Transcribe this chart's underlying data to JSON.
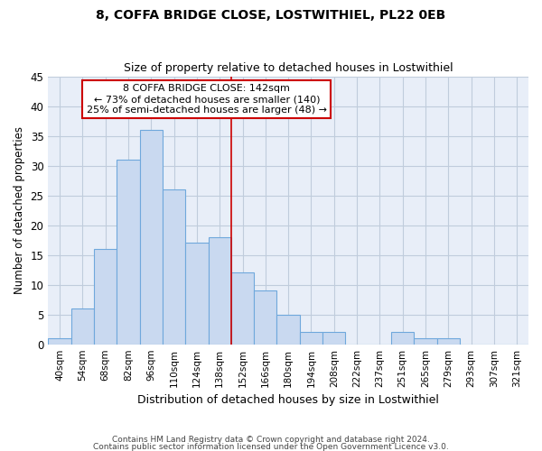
{
  "title": "8, COFFA BRIDGE CLOSE, LOSTWITHIEL, PL22 0EB",
  "subtitle": "Size of property relative to detached houses in Lostwithiel",
  "xlabel": "Distribution of detached houses by size in Lostwithiel",
  "ylabel": "Number of detached properties",
  "bar_labels": [
    "40sqm",
    "54sqm",
    "68sqm",
    "82sqm",
    "96sqm",
    "110sqm",
    "124sqm",
    "138sqm",
    "152sqm",
    "166sqm",
    "180sqm",
    "194sqm",
    "208sqm",
    "222sqm",
    "237sqm",
    "251sqm",
    "265sqm",
    "279sqm",
    "293sqm",
    "307sqm",
    "321sqm"
  ],
  "bar_values": [
    1,
    6,
    16,
    31,
    36,
    26,
    17,
    18,
    12,
    9,
    5,
    2,
    2,
    0,
    0,
    2,
    1,
    1,
    0,
    0,
    0
  ],
  "bar_color": "#c9d9f0",
  "bar_edge_color": "#6fa8dc",
  "annotation_title": "8 COFFA BRIDGE CLOSE: 142sqm",
  "annotation_line1": "← 73% of detached houses are smaller (140)",
  "annotation_line2": "25% of semi-detached houses are larger (48) →",
  "annotation_box_color": "#ffffff",
  "annotation_box_edge_color": "#cc0000",
  "ylim": [
    0,
    45
  ],
  "yticks": [
    0,
    5,
    10,
    15,
    20,
    25,
    30,
    35,
    40,
    45
  ],
  "footer_line1": "Contains HM Land Registry data © Crown copyright and database right 2024.",
  "footer_line2": "Contains public sector information licensed under the Open Government Licence v3.0.",
  "background_color": "#ffffff",
  "plot_bg_color": "#e8eef8",
  "grid_color": "#c0ccdc",
  "bin_width": 14,
  "n_bins": 21,
  "prop_line_bin_index": 7.5
}
